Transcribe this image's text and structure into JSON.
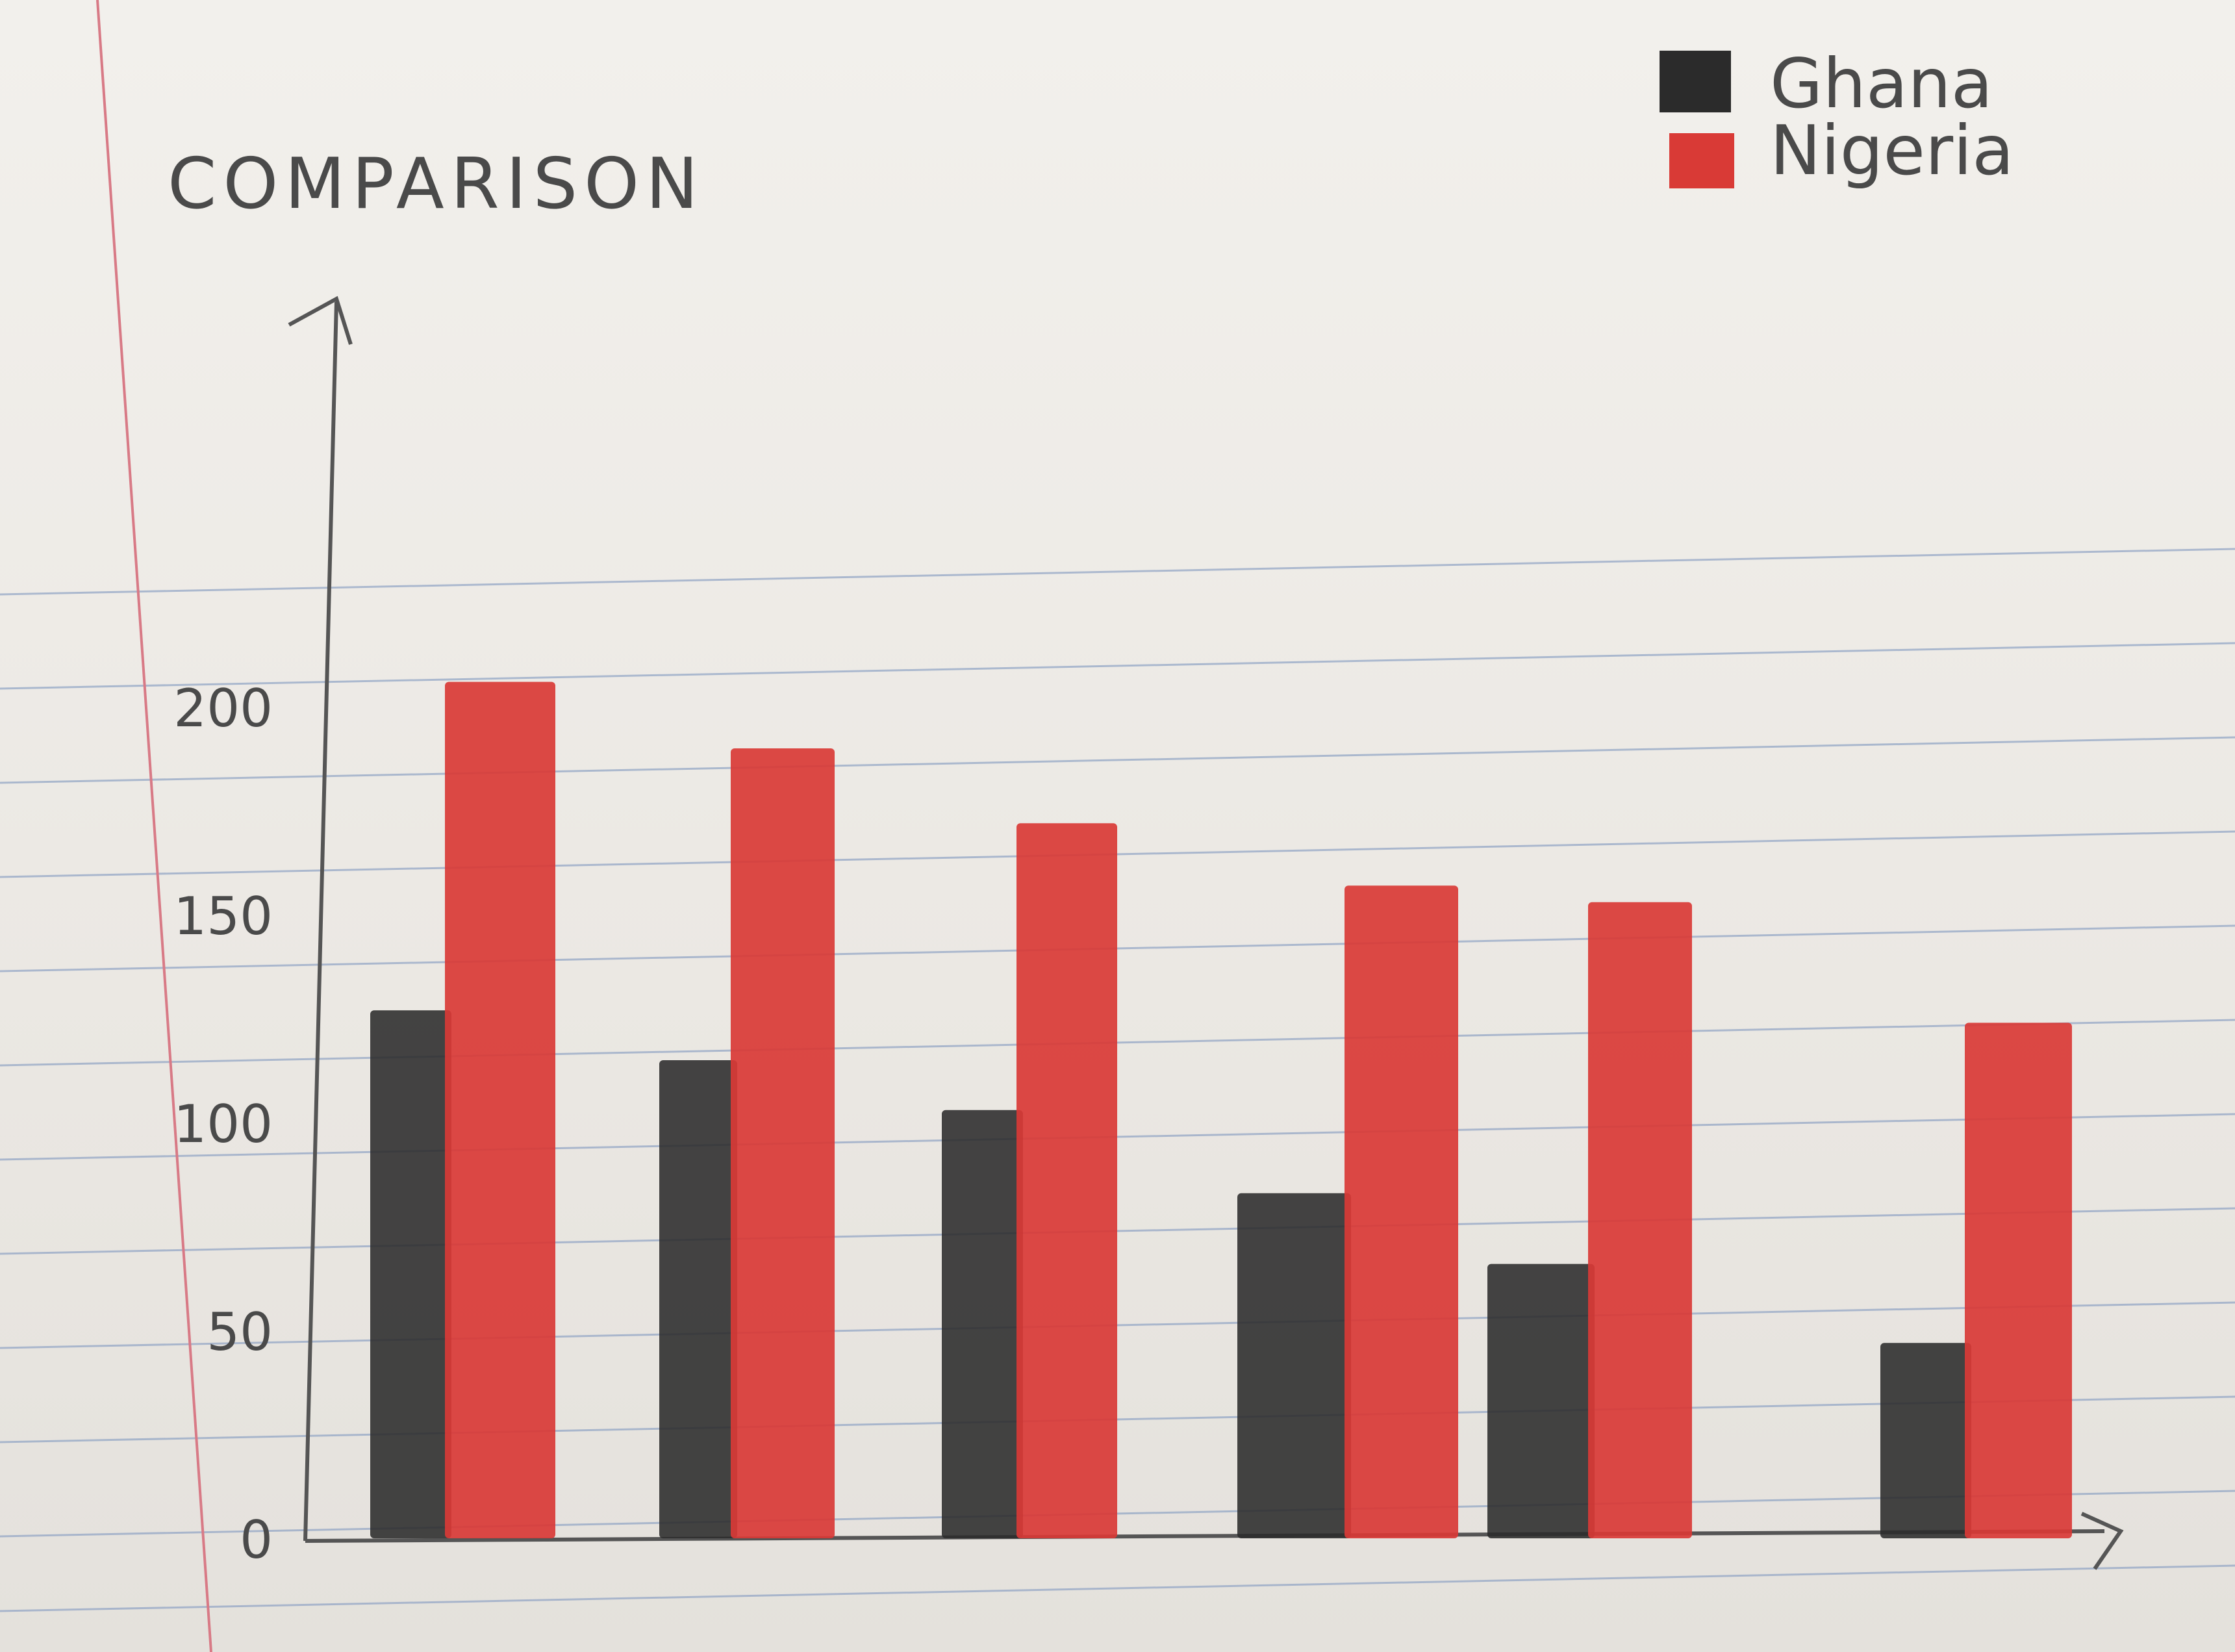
{
  "chart_data": {
    "type": "bar",
    "title": "COMPARISON",
    "xlabel": "",
    "ylabel": "",
    "categories": [
      "",
      "",
      "",
      "",
      "",
      ""
    ],
    "series": [
      {
        "name": "Ghana",
        "color": "#2b2b2b",
        "values": [
          127,
          115,
          103,
          83,
          66,
          47
        ]
      },
      {
        "name": "Nigeria",
        "color": "#d93a36",
        "values": [
          206,
          190,
          172,
          157,
          153,
          124
        ]
      }
    ],
    "yticks": [
      "0",
      "50",
      "100",
      "150",
      "200"
    ],
    "ylim": [
      0,
      250
    ],
    "grid": false,
    "legend_position": "top-right"
  },
  "colors": {
    "ruled_line": "#8fa3c4",
    "margin_line": "#d87a86",
    "axis": "#555555"
  }
}
